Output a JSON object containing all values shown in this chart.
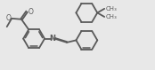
{
  "bg_color": "#e8e8e8",
  "line_color": "#5a5a5a",
  "lw": 1.3,
  "figsize": [
    1.74,
    0.79
  ],
  "dpi": 100,
  "font_size": 5.5,
  "xlim": [
    0,
    10.5
  ],
  "ylim": [
    0.5,
    5.0
  ]
}
